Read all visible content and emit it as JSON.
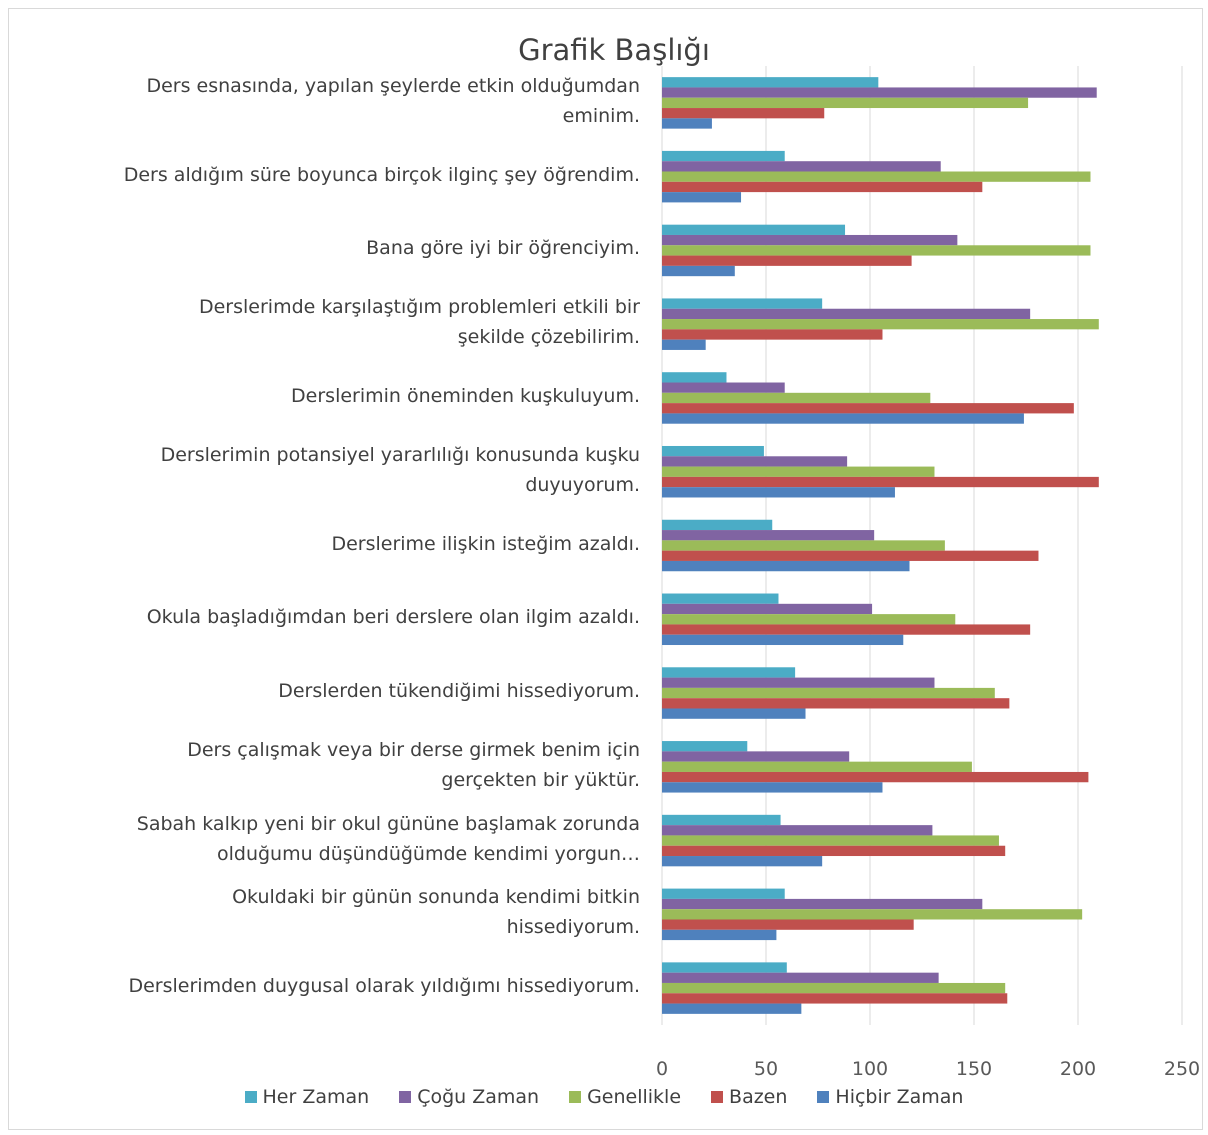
{
  "chart_data": {
    "type": "bar",
    "orientation": "horizontal",
    "title": "Grafik Başlığı",
    "xlim": [
      0,
      250
    ],
    "xticks": [
      0,
      50,
      100,
      150,
      200,
      250
    ],
    "grid": true,
    "legend_position": "bottom",
    "categories": [
      "Ders esnasında, yapılan şeylerde etkin olduğumdan eminim.",
      "Ders aldığım süre boyunca birçok ilginç şey öğrendim.",
      "Bana göre iyi bir öğrenciyim.",
      "Derslerimde karşılaştığım problemleri etkili bir şekilde çözebilirim.",
      "Derslerimin öneminden kuşkuluyum.",
      "Derslerimin potansiyel yararlılığı konusunda kuşku duyuyorum.",
      "Derslerime ilişkin isteğim azaldı.",
      "Okula başladığımdan beri derslere olan ilgim azaldı.",
      "Derslerden tükendiğimi hissediyorum.",
      "Ders çalışmak veya bir derse girmek benim için gerçekten bir yüktür.",
      "Sabah kalkıp yeni bir okul gününe başlamak zorunda olduğumu düşündüğümde kendimi yorgun…",
      "Okuldaki bir günün sonunda kendimi bitkin hissediyorum.",
      "Derslerimden duygusal olarak yıldığımı hissediyorum."
    ],
    "category_lines": [
      [
        "Ders esnasında, yapılan şeylerde etkin olduğumdan",
        "eminim."
      ],
      [
        "Ders aldığım süre boyunca birçok ilginç şey öğrendim."
      ],
      [
        "Bana göre iyi bir öğrenciyim."
      ],
      [
        "Derslerimde karşılaştığım problemleri etkili bir",
        "şekilde çözebilirim."
      ],
      [
        "Derslerimin öneminden kuşkuluyum."
      ],
      [
        "Derslerimin potansiyel yararlılığı konusunda kuşku",
        "duyuyorum."
      ],
      [
        "Derslerime ilişkin isteğim azaldı."
      ],
      [
        "Okula başladığımdan beri derslere olan ilgim azaldı."
      ],
      [
        "Derslerden tükendiğimi hissediyorum."
      ],
      [
        "Ders çalışmak veya bir derse girmek benim için",
        "gerçekten bir yüktür."
      ],
      [
        "Sabah kalkıp yeni bir okul gününe başlamak zorunda",
        "olduğumu düşündüğümde kendimi yorgun…"
      ],
      [
        "Okuldaki bir günün sonunda kendimi bitkin",
        "hissediyorum."
      ],
      [
        "Derslerimden duygusal olarak yıldığımı hissediyorum."
      ]
    ],
    "series": [
      {
        "name": "Her Zaman",
        "color": "#4bacc6",
        "values": [
          104,
          59,
          88,
          77,
          31,
          49,
          53,
          56,
          64,
          41,
          57,
          59,
          60
        ]
      },
      {
        "name": "Çoğu Zaman",
        "color": "#8064a2",
        "values": [
          209,
          134,
          142,
          177,
          59,
          89,
          102,
          101,
          131,
          90,
          130,
          154,
          133
        ]
      },
      {
        "name": "Genellikle",
        "color": "#9bbb59",
        "values": [
          176,
          206,
          206,
          210,
          129,
          131,
          136,
          141,
          160,
          149,
          162,
          202,
          165
        ]
      },
      {
        "name": "Bazen",
        "color": "#c0504d",
        "values": [
          78,
          154,
          120,
          106,
          198,
          210,
          181,
          177,
          167,
          205,
          165,
          121,
          166
        ]
      },
      {
        "name": "Hiçbir Zaman",
        "color": "#4f81bd",
        "values": [
          24,
          38,
          35,
          21,
          174,
          112,
          119,
          116,
          69,
          106,
          77,
          55,
          67
        ]
      }
    ]
  }
}
